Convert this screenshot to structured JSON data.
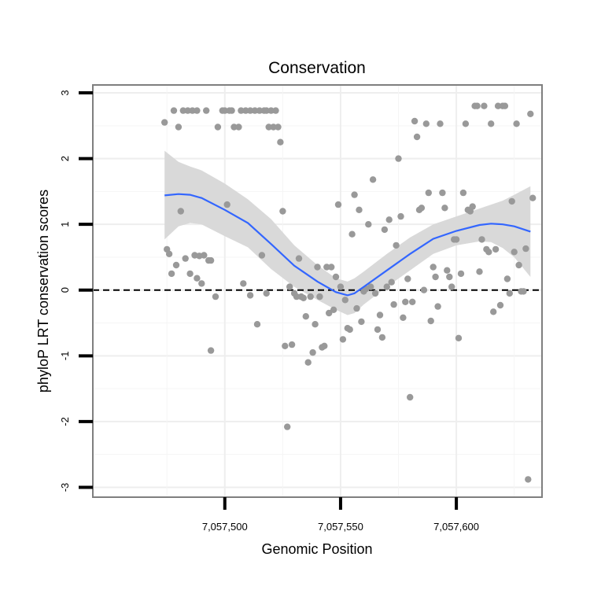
{
  "chart_data": {
    "type": "scatter",
    "title": "Conservation",
    "xlabel": "Genomic Position",
    "ylabel": "phyloP LRT conservation scores",
    "xlim": [
      7057443,
      7057637
    ],
    "ylim": [
      -3.15,
      3.12
    ],
    "x_ticks": [
      {
        "value": 7057500,
        "label": "7,057,500"
      },
      {
        "value": 7057550,
        "label": "7,057,550"
      },
      {
        "value": 7057600,
        "label": "7,057,600"
      }
    ],
    "y_ticks": [
      {
        "value": 3,
        "label": "3"
      },
      {
        "value": 2,
        "label": "2"
      },
      {
        "value": 1,
        "label": "1"
      },
      {
        "value": 0,
        "label": "0"
      },
      {
        "value": -1,
        "label": "-1"
      },
      {
        "value": -2,
        "label": "-2"
      },
      {
        "value": -3,
        "label": "-3"
      }
    ],
    "grid": true,
    "reference_line": {
      "y": 0,
      "style": "dashed"
    },
    "points_color": "#999999",
    "smooth_color": "#3366FF",
    "ribbon_color": "#d9d9d9",
    "points": [
      [
        7057474,
        2.55
      ],
      [
        7057478,
        2.73
      ],
      [
        7057480,
        2.48
      ],
      [
        7057482,
        2.73
      ],
      [
        7057484,
        2.73
      ],
      [
        7057486,
        2.73
      ],
      [
        7057488,
        2.73
      ],
      [
        7057492,
        2.73
      ],
      [
        7057497,
        2.48
      ],
      [
        7057499,
        2.73
      ],
      [
        7057500,
        2.73
      ],
      [
        7057502,
        2.73
      ],
      [
        7057503,
        2.73
      ],
      [
        7057504,
        2.48
      ],
      [
        7057506,
        2.48
      ],
      [
        7057507,
        2.73
      ],
      [
        7057509,
        2.73
      ],
      [
        7057511,
        2.73
      ],
      [
        7057513,
        2.73
      ],
      [
        7057515,
        2.73
      ],
      [
        7057517,
        2.73
      ],
      [
        7057518,
        2.73
      ],
      [
        7057519,
        2.48
      ],
      [
        7057521,
        2.48
      ],
      [
        7057520,
        2.73
      ],
      [
        7057522,
        2.73
      ],
      [
        7057523,
        2.48
      ],
      [
        7057524,
        2.25
      ],
      [
        7057475,
        0.62
      ],
      [
        7057476,
        0.55
      ],
      [
        7057477,
        0.25
      ],
      [
        7057479,
        0.38
      ],
      [
        7057481,
        1.2
      ],
      [
        7057483,
        0.48
      ],
      [
        7057485,
        0.25
      ],
      [
        7057487,
        0.53
      ],
      [
        7057488,
        0.18
      ],
      [
        7057489,
        0.52
      ],
      [
        7057490,
        0.1
      ],
      [
        7057491,
        0.53
      ],
      [
        7057493,
        0.45
      ],
      [
        7057494,
        0.45
      ],
      [
        7057494,
        -0.92
      ],
      [
        7057496,
        -0.1
      ],
      [
        7057501,
        1.3
      ],
      [
        7057508,
        0.1
      ],
      [
        7057511,
        -0.08
      ],
      [
        7057514,
        -0.52
      ],
      [
        7057516,
        0.53
      ],
      [
        7057518,
        -0.05
      ],
      [
        7057525,
        1.2
      ],
      [
        7057526,
        -0.85
      ],
      [
        7057527,
        -2.08
      ],
      [
        7057528,
        0.05
      ],
      [
        7057529,
        -0.83
      ],
      [
        7057530,
        -0.05
      ],
      [
        7057531,
        -0.1
      ],
      [
        7057532,
        0.48
      ],
      [
        7057533,
        -0.1
      ],
      [
        7057534,
        -0.12
      ],
      [
        7057535,
        -0.4
      ],
      [
        7057536,
        -1.1
      ],
      [
        7057537,
        -0.1
      ],
      [
        7057538,
        -0.95
      ],
      [
        7057539,
        -0.52
      ],
      [
        7057540,
        0.35
      ],
      [
        7057541,
        -0.1
      ],
      [
        7057542,
        -0.87
      ],
      [
        7057543,
        -0.85
      ],
      [
        7057544,
        0.35
      ],
      [
        7057545,
        -0.35
      ],
      [
        7057546,
        0.35
      ],
      [
        7057547,
        -0.3
      ],
      [
        7057548,
        0.2
      ],
      [
        7057549,
        1.3
      ],
      [
        7057550,
        0.05
      ],
      [
        7057551,
        -0.75
      ],
      [
        7057552,
        -0.15
      ],
      [
        7057553,
        -0.58
      ],
      [
        7057554,
        -0.6
      ],
      [
        7057555,
        0.85
      ],
      [
        7057556,
        1.45
      ],
      [
        7057557,
        -0.28
      ],
      [
        7057558,
        1.22
      ],
      [
        7057559,
        -0.48
      ],
      [
        7057560,
        -0.02
      ],
      [
        7057561,
        0.02
      ],
      [
        7057562,
        1.0
      ],
      [
        7057563,
        0.05
      ],
      [
        7057564,
        1.68
      ],
      [
        7057565,
        -0.05
      ],
      [
        7057566,
        -0.6
      ],
      [
        7057567,
        -0.38
      ],
      [
        7057568,
        -0.72
      ],
      [
        7057569,
        0.92
      ],
      [
        7057570,
        0.05
      ],
      [
        7057571,
        1.07
      ],
      [
        7057572,
        0.12
      ],
      [
        7057573,
        -0.22
      ],
      [
        7057574,
        0.68
      ],
      [
        7057575,
        2.0
      ],
      [
        7057576,
        1.12
      ],
      [
        7057577,
        -0.42
      ],
      [
        7057578,
        -0.18
      ],
      [
        7057579,
        0.17
      ],
      [
        7057580,
        -1.63
      ],
      [
        7057581,
        -0.18
      ],
      [
        7057582,
        2.57
      ],
      [
        7057583,
        2.33
      ],
      [
        7057584,
        1.22
      ],
      [
        7057585,
        1.25
      ],
      [
        7057586,
        0.0
      ],
      [
        7057587,
        2.53
      ],
      [
        7057588,
        1.48
      ],
      [
        7057589,
        -0.47
      ],
      [
        7057590,
        0.35
      ],
      [
        7057591,
        0.2
      ],
      [
        7057592,
        -0.25
      ],
      [
        7057593,
        2.53
      ],
      [
        7057594,
        1.48
      ],
      [
        7057595,
        1.25
      ],
      [
        7057596,
        0.3
      ],
      [
        7057597,
        0.2
      ],
      [
        7057598,
        0.05
      ],
      [
        7057599,
        0.77
      ],
      [
        7057600,
        0.77
      ],
      [
        7057601,
        -0.73
      ],
      [
        7057602,
        0.25
      ],
      [
        7057603,
        1.48
      ],
      [
        7057604,
        2.53
      ],
      [
        7057605,
        1.22
      ],
      [
        7057606,
        1.2
      ],
      [
        7057607,
        1.27
      ],
      [
        7057608,
        2.8
      ],
      [
        7057609,
        2.8
      ],
      [
        7057610,
        0.28
      ],
      [
        7057611,
        0.77
      ],
      [
        7057612,
        2.8
      ],
      [
        7057613,
        0.62
      ],
      [
        7057614,
        0.58
      ],
      [
        7057615,
        2.53
      ],
      [
        7057616,
        -0.33
      ],
      [
        7057617,
        0.62
      ],
      [
        7057618,
        2.8
      ],
      [
        7057619,
        -0.23
      ],
      [
        7057620,
        2.8
      ],
      [
        7057621,
        2.8
      ],
      [
        7057622,
        0.17
      ],
      [
        7057623,
        -0.05
      ],
      [
        7057624,
        1.35
      ],
      [
        7057625,
        0.58
      ],
      [
        7057626,
        2.53
      ],
      [
        7057627,
        0.38
      ],
      [
        7057628,
        -0.02
      ],
      [
        7057629,
        -0.02
      ],
      [
        7057630,
        0.63
      ],
      [
        7057631,
        -2.88
      ],
      [
        7057632,
        2.68
      ],
      [
        7057633,
        1.4
      ]
    ],
    "smooth_line": {
      "x": [
        7057474,
        7057480,
        7057485,
        7057490,
        7057500,
        7057510,
        7057520,
        7057530,
        7057540,
        7057548,
        7057553,
        7057556,
        7057560,
        7057570,
        7057580,
        7057590,
        7057600,
        7057610,
        7057615,
        7057620,
        7057625,
        7057632
      ],
      "y": [
        1.44,
        1.46,
        1.45,
        1.4,
        1.22,
        1.02,
        0.7,
        0.37,
        0.13,
        -0.03,
        -0.08,
        -0.05,
        0.05,
        0.3,
        0.55,
        0.78,
        0.9,
        0.99,
        1.01,
        1.0,
        0.97,
        0.89
      ],
      "upper": [
        2.12,
        1.95,
        1.88,
        1.82,
        1.62,
        1.38,
        1.08,
        0.68,
        0.38,
        0.18,
        0.13,
        0.18,
        0.28,
        0.55,
        0.8,
        1.0,
        1.12,
        1.24,
        1.3,
        1.36,
        1.45,
        1.58
      ],
      "lower": [
        0.77,
        0.97,
        1.02,
        1.0,
        0.82,
        0.65,
        0.32,
        0.05,
        -0.15,
        -0.3,
        -0.38,
        -0.35,
        -0.22,
        0.05,
        0.3,
        0.55,
        0.68,
        0.74,
        0.73,
        0.64,
        0.5,
        0.2
      ]
    }
  }
}
